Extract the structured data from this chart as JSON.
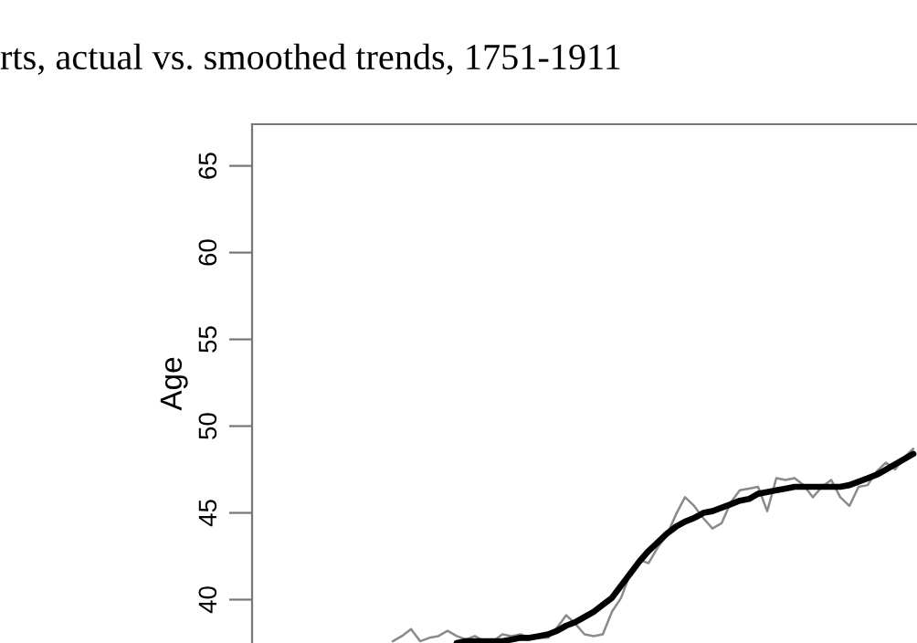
{
  "chart_data": {
    "type": "line",
    "title": "rts, actual vs. smoothed trends, 1751-1911",
    "ylabel": "Age",
    "categories": [
      null,
      null,
      null,
      null,
      null,
      null,
      null,
      null,
      null,
      null,
      null,
      null,
      null,
      null,
      null,
      null,
      null,
      null,
      null,
      null,
      null,
      null,
      null,
      null,
      null,
      null,
      null,
      null,
      null,
      null,
      null,
      null,
      null,
      null,
      null,
      null,
      null,
      null,
      null,
      null,
      null,
      null,
      null,
      null,
      null,
      null,
      null,
      null,
      null,
      null,
      null,
      null,
      null,
      null,
      null,
      null,
      null,
      null,
      null,
      null,
      null,
      null,
      null,
      null,
      null,
      null,
      null,
      null,
      null,
      null,
      null,
      null,
      null
    ],
    "series": [
      {
        "color": "#8a8a8a",
        "values": [
          null,
          null,
          null,
          null,
          null,
          null,
          null,
          null,
          null,
          null,
          null,
          null,
          null,
          null,
          null,
          37.6,
          37.9,
          38.3,
          37.6,
          37.8,
          37.9,
          38.2,
          37.9,
          37.7,
          37.9,
          37.6,
          37.6,
          38.0,
          37.9,
          38.0,
          37.8,
          37.8,
          37.8,
          38.4,
          39.1,
          38.6,
          38.0,
          37.9,
          38.0,
          39.3,
          40.1,
          41.5,
          42.3,
          42.1,
          43.0,
          43.7,
          44.9,
          45.9,
          45.4,
          44.7,
          44.1,
          44.4,
          45.6,
          46.3,
          46.4,
          46.5,
          45.1,
          47.0,
          46.9,
          47.0,
          46.6,
          45.9,
          46.5,
          46.9,
          45.9,
          45.4,
          46.5,
          46.6,
          47.4,
          47.9,
          47.5,
          48.2,
          48.7
        ]
      },
      {
        "color": "#000000",
        "values": [
          null,
          null,
          null,
          null,
          null,
          null,
          null,
          null,
          null,
          null,
          null,
          null,
          null,
          null,
          null,
          null,
          null,
          null,
          null,
          null,
          null,
          null,
          37.5,
          37.6,
          37.6,
          37.6,
          37.6,
          37.6,
          37.7,
          37.8,
          37.8,
          37.9,
          38.0,
          38.2,
          38.5,
          38.7,
          39.0,
          39.3,
          39.7,
          40.1,
          40.8,
          41.5,
          42.2,
          42.8,
          43.3,
          43.8,
          44.2,
          44.5,
          44.7,
          45.0,
          45.1,
          45.3,
          45.5,
          45.7,
          45.8,
          46.1,
          46.2,
          46.3,
          46.4,
          46.5,
          46.5,
          46.5,
          46.5,
          46.5,
          46.5,
          46.6,
          46.8,
          47.0,
          47.2,
          47.5,
          47.8,
          48.1,
          48.4
        ]
      }
    ],
    "ylim": [
      37.5,
      67.4
    ],
    "yticks": [
      40,
      45,
      50,
      55,
      60,
      65
    ],
    "tick_labels": "y",
    "grid": false,
    "legend": false
  }
}
